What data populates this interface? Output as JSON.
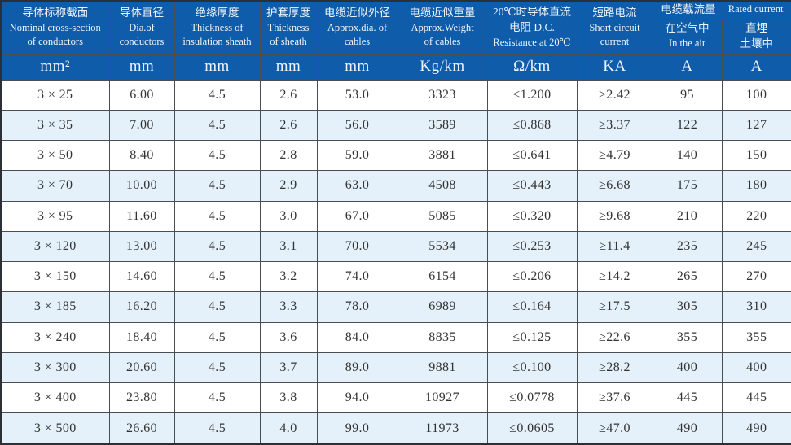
{
  "colors": {
    "header_bg": "#0f5caa",
    "header_text": "#eef4fa",
    "row_alt_bg": "#e4f1fa",
    "row_bg": "#ffffff",
    "grid_line": "#4a4e53",
    "outer_border": "#2c2f33",
    "cell_text": "#333333"
  },
  "header": {
    "cols": [
      {
        "l1": "导体标称截面",
        "l2": "Nominal cross-section",
        "l3": "of conductors"
      },
      {
        "l1": "导体直径",
        "l2": "Dia.of",
        "l3": "conductors"
      },
      {
        "l1": "绝缘厚度",
        "l2": "Thickness of",
        "l3": "insulation sheath"
      },
      {
        "l1": "护套厚度",
        "l2": "Thickness",
        "l3": "of sheath"
      },
      {
        "l1": "电缆近似外径",
        "l2": "Approx.dia. of",
        "l3": "cables"
      },
      {
        "l1": "电缆近似重量",
        "l2": "Approx.Weight",
        "l3": "of cables"
      },
      {
        "l1": "20℃时导体直流",
        "l2": "电阻 D.C.",
        "l3": "Resistance at 20℃"
      },
      {
        "l1": "短路电流",
        "l2": "Short circuit",
        "l3": "current"
      }
    ],
    "rated": {
      "zh": "电缆载流量",
      "en": "Rated current",
      "sub": [
        {
          "zh": "在空气中",
          "en": "In the air"
        },
        {
          "zh": "直埋",
          "en": "土壤中"
        }
      ]
    },
    "units": [
      "mm²",
      "mm",
      "mm",
      "mm",
      "mm",
      "Kg/km",
      "Ω/km",
      "KA",
      "A",
      "A"
    ]
  },
  "table": {
    "col_keys": [
      "cross-section",
      "conductor-dia",
      "insulation-thickness",
      "sheath-thickness",
      "approx-dia",
      "approx-weight",
      "dc-resistance",
      "short-circuit-current",
      "ampacity-air",
      "ampacity-buried"
    ],
    "rows": [
      [
        "3 × 25",
        "6.00",
        "4.5",
        "2.6",
        "53.0",
        "3323",
        "≤1.200",
        "≥2.42",
        "95",
        "100"
      ],
      [
        "3 × 35",
        "7.00",
        "4.5",
        "2.6",
        "56.0",
        "3589",
        "≤0.868",
        "≥3.37",
        "122",
        "127"
      ],
      [
        "3 × 50",
        "8.40",
        "4.5",
        "2.8",
        "59.0",
        "3881",
        "≤0.641",
        "≥4.79",
        "140",
        "150"
      ],
      [
        "3 × 70",
        "10.00",
        "4.5",
        "2.9",
        "63.0",
        "4508",
        "≤0.443",
        "≥6.68",
        "175",
        "180"
      ],
      [
        "3 × 95",
        "11.60",
        "4.5",
        "3.0",
        "67.0",
        "5085",
        "≤0.320",
        "≥9.68",
        "210",
        "220"
      ],
      [
        "3 × 120",
        "13.00",
        "4.5",
        "3.1",
        "70.0",
        "5534",
        "≤0.253",
        "≥11.4",
        "235",
        "245"
      ],
      [
        "3 × 150",
        "14.60",
        "4.5",
        "3.2",
        "74.0",
        "6154",
        "≤0.206",
        "≥14.2",
        "265",
        "270"
      ],
      [
        "3 × 185",
        "16.20",
        "4.5",
        "3.3",
        "78.0",
        "6989",
        "≤0.164",
        "≥17.5",
        "305",
        "310"
      ],
      [
        "3 × 240",
        "18.40",
        "4.5",
        "3.6",
        "84.0",
        "8835",
        "≤0.125",
        "≥22.6",
        "355",
        "355"
      ],
      [
        "3 × 300",
        "20.60",
        "4.5",
        "3.7",
        "89.0",
        "9881",
        "≤0.100",
        "≥28.2",
        "400",
        "400"
      ],
      [
        "3 × 400",
        "23.80",
        "4.5",
        "3.8",
        "94.0",
        "10927",
        "≤0.0778",
        "≥37.6",
        "445",
        "445"
      ],
      [
        "3 × 500",
        "26.60",
        "4.5",
        "4.0",
        "99.0",
        "11973",
        "≤0.0605",
        "≥47.0",
        "490",
        "490"
      ]
    ]
  }
}
